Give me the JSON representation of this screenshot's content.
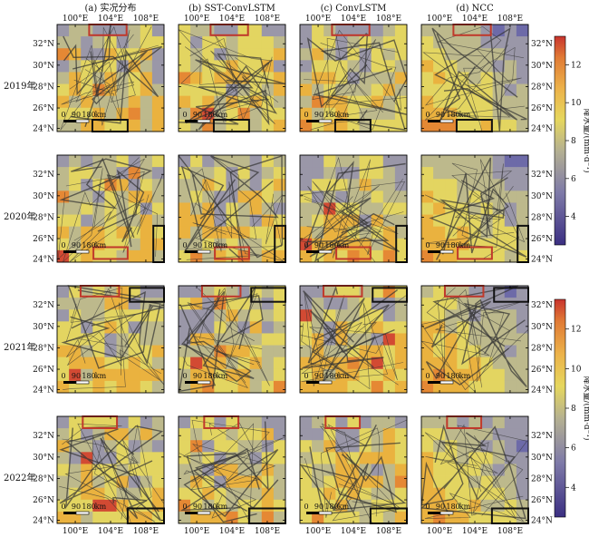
{
  "columns": [
    "(a) 实况分布",
    "(b) SST-ConvLSTM",
    "(c) ConvLSTM",
    "(d) NCC"
  ],
  "rows": [
    "2019年",
    "2020年",
    "2021年",
    "2022年"
  ],
  "lon_ticks": [
    "100°E",
    "104°E",
    "108°E"
  ],
  "lat_ticks": [
    "32°N",
    "30°N",
    "28°N",
    "26°N",
    "24°N"
  ],
  "scalebar": {
    "ticks": [
      "0",
      "90",
      "180"
    ],
    "unit": "km"
  },
  "colorbar": {
    "label": "降水量/(mm·d⁻¹)",
    "ticks": [
      "12",
      "10",
      "8",
      "6",
      "4"
    ],
    "range": [
      2.5,
      13.5
    ],
    "colors": [
      "#4a3e8c",
      "#6d6aa8",
      "#9a97a8",
      "#bdb98c",
      "#e3d561",
      "#eab23f",
      "#e58834",
      "#d24a33"
    ]
  },
  "colors": {
    "highlight_box": "#c0392b",
    "black_box": "#111111",
    "river": "#333333"
  }
}
